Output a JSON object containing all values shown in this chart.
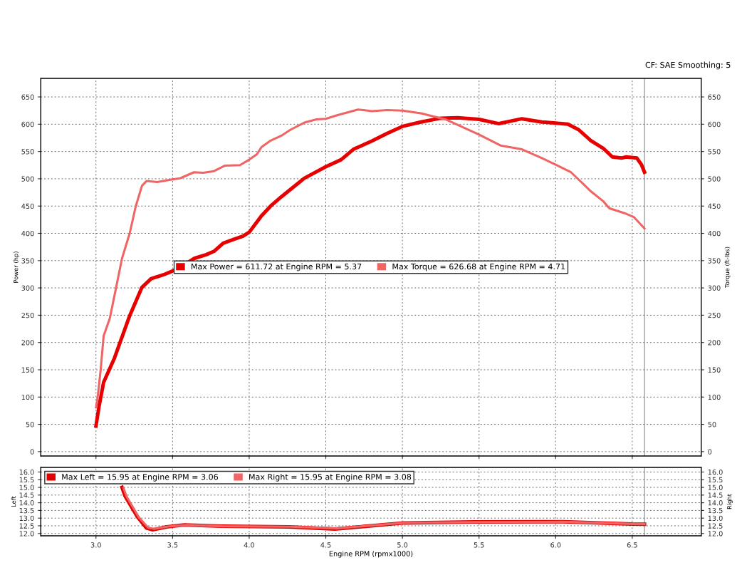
{
  "chart_data": [
    {
      "type": "line",
      "ylabel": "Power (hp)",
      "y2label": "Torque (ft-lbs)",
      "annotations": [
        "CF: SAE Smoothing: 5"
      ],
      "xlim": [
        2.64,
        6.95
      ],
      "xticks": [
        3.0,
        3.5,
        4.0,
        4.5,
        5.0,
        5.5,
        6.0,
        6.5
      ],
      "ylim": [
        -8,
        684
      ],
      "yticks": [
        0,
        50,
        100,
        150,
        200,
        250,
        300,
        350,
        400,
        450,
        500,
        550,
        600,
        650
      ],
      "y2lim": [
        -8,
        684
      ],
      "y2ticks": [
        0,
        50,
        100,
        150,
        200,
        250,
        300,
        350,
        400,
        450,
        500,
        550,
        600,
        650
      ],
      "tick_labels": "y",
      "grid": true,
      "legend": "center",
      "marker": "none",
      "line_style": "solid",
      "ref_lines": [
        {
          "axis": "x",
          "value": 6.58,
          "label": null,
          "color": "#888888"
        }
      ],
      "series": [
        {
          "name": "Max Power = 611.72 at Engine RPM = 5.37",
          "color": "#e80000",
          "axis": "y",
          "x": [
            3.0,
            3.02,
            3.05,
            3.12,
            3.22,
            3.3,
            3.36,
            3.44,
            3.5,
            3.58,
            3.64,
            3.72,
            3.77,
            3.83,
            3.9,
            3.96,
            4.0,
            4.08,
            4.14,
            4.21,
            4.28,
            4.36,
            4.5,
            4.6,
            4.68,
            4.8,
            4.9,
            5.0,
            5.12,
            5.25,
            5.36,
            5.5,
            5.63,
            5.78,
            5.91,
            6.0,
            6.08,
            6.15,
            6.23,
            6.31,
            6.37,
            6.43,
            6.46,
            6.53,
            6.56,
            6.58
          ],
          "values": [
            47,
            83,
            127,
            171,
            249,
            301,
            317,
            324,
            331,
            343,
            354,
            361,
            367,
            382,
            389,
            395,
            402,
            432,
            450,
            467,
            483,
            501,
            522,
            535,
            554,
            569,
            583,
            596,
            604,
            611,
            612,
            609,
            601,
            610,
            604,
            602,
            600,
            590,
            570,
            556,
            540,
            538,
            540,
            538,
            526,
            512
          ]
        },
        {
          "name": "Max Torque = 626.68 at Engine RPM = 4.71",
          "color": "#f06464",
          "axis": "y2",
          "x": [
            3.0,
            3.01,
            3.03,
            3.05,
            3.09,
            3.12,
            3.17,
            3.22,
            3.26,
            3.3,
            3.33,
            3.4,
            3.5,
            3.55,
            3.64,
            3.7,
            3.77,
            3.84,
            3.94,
            4.0,
            4.05,
            4.08,
            4.14,
            4.21,
            4.27,
            4.36,
            4.44,
            4.5,
            4.57,
            4.71,
            4.8,
            4.9,
            5.0,
            5.12,
            5.28,
            5.5,
            5.64,
            5.78,
            5.91,
            6.0,
            6.1,
            6.16,
            6.23,
            6.31,
            6.35,
            6.45,
            6.51,
            6.58
          ],
          "values": [
            81,
            97,
            148,
            212,
            244,
            285,
            354,
            400,
            450,
            487,
            496,
            494,
            499,
            501,
            512,
            511,
            514,
            524,
            525,
            535,
            545,
            558,
            570,
            579,
            590,
            603,
            609,
            610,
            616,
            627,
            624,
            626,
            625,
            620,
            609,
            581,
            561,
            554,
            538,
            526,
            512,
            496,
            477,
            459,
            446,
            437,
            430,
            409
          ]
        }
      ]
    },
    {
      "type": "line",
      "ylabel": "Left",
      "y2label": "Right",
      "xlabel": "Engine RPM (rpmx1000)",
      "xlim": [
        2.64,
        6.95
      ],
      "xticks": [
        {
          "value": 3.0,
          "label": "3.0"
        },
        3.5,
        {
          "value": 4.0,
          "label": "4.0"
        },
        4.5,
        {
          "value": 5.0,
          "label": "5.0"
        },
        5.5,
        {
          "value": 6.0,
          "label": "6.0"
        },
        6.5
      ],
      "ylim": [
        11.85,
        16.3
      ],
      "yticks": [
        {
          "value": 12.0,
          "label": "12.0"
        },
        12.5,
        {
          "value": 13.0,
          "label": "13.0"
        },
        13.5,
        {
          "value": 14.0,
          "label": "14.0"
        },
        14.5,
        {
          "value": 15.0,
          "label": "15.0"
        },
        15.5,
        {
          "value": 16.0,
          "label": "16.0"
        }
      ],
      "y2lim": [
        11.85,
        16.3
      ],
      "y2ticks": [
        {
          "value": 12.0,
          "label": "12.0"
        },
        12.5,
        {
          "value": 13.0,
          "label": "13.0"
        },
        13.5,
        {
          "value": 14.0,
          "label": "14.0"
        },
        14.5,
        {
          "value": 15.0,
          "label": "15.0"
        },
        15.5,
        {
          "value": 16.0,
          "label": "16.0"
        }
      ],
      "grid": true,
      "legend": "top left",
      "marker": "none",
      "line_style": "solid",
      "ref_lines": [
        {
          "axis": "x",
          "value": 6.58,
          "label": null,
          "color": "#888888"
        }
      ],
      "series": [
        {
          "name": "Max Left = 15.95 at Engine RPM = 3.06",
          "color": "#e00000",
          "axis": "y",
          "x": [
            3.17,
            3.19,
            3.27,
            3.33,
            3.37,
            3.46,
            3.58,
            3.82,
            4.26,
            4.56,
            4.86,
            5.01,
            5.46,
            6.05,
            6.5,
            6.58
          ],
          "values": [
            15.0,
            14.43,
            13.09,
            12.35,
            12.24,
            12.43,
            12.56,
            12.48,
            12.43,
            12.29,
            12.56,
            12.69,
            12.75,
            12.77,
            12.61,
            12.6
          ]
        },
        {
          "name": "Max Right = 15.95 at Engine RPM = 3.08",
          "color": "#f06464",
          "axis": "y2",
          "x": [
            3.18,
            3.2,
            3.28,
            3.34,
            3.38,
            3.47,
            3.59,
            3.83,
            4.27,
            4.57,
            4.87,
            5.02,
            5.47,
            6.06,
            6.5,
            6.58
          ],
          "values": [
            14.95,
            14.4,
            13.05,
            12.38,
            12.3,
            12.45,
            12.55,
            12.47,
            12.44,
            12.33,
            12.58,
            12.7,
            12.74,
            12.76,
            12.62,
            12.61
          ]
        }
      ]
    }
  ]
}
